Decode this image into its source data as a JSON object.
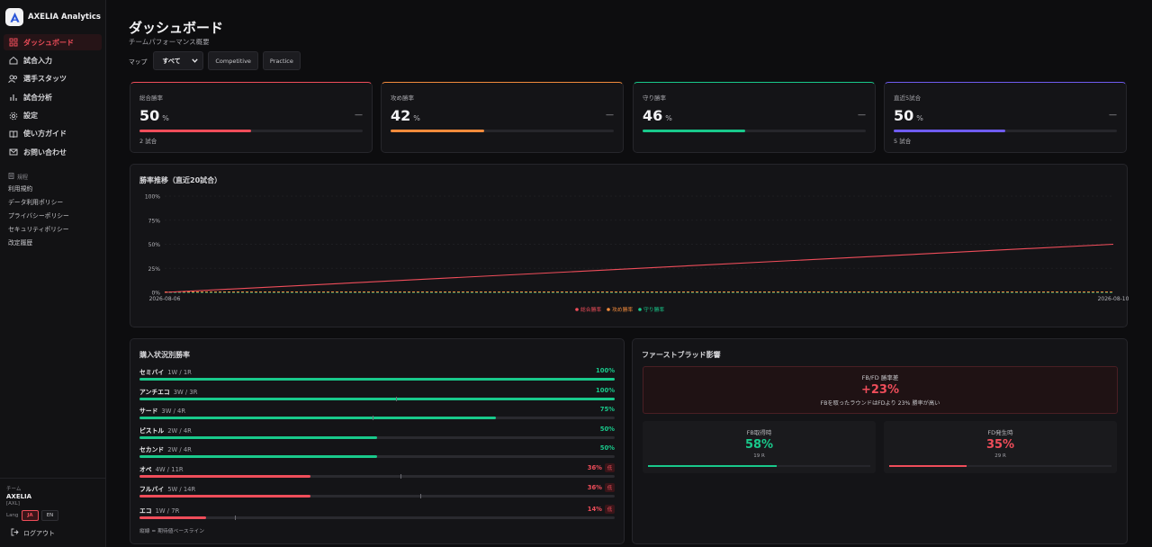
{
  "brand": {
    "name": "AXELIA Analytics"
  },
  "nav": [
    {
      "label": "ダッシュボード",
      "icon": "grid-icon",
      "active": true
    },
    {
      "label": "試合入力",
      "icon": "home-icon"
    },
    {
      "label": "選手スタッツ",
      "icon": "users-icon"
    },
    {
      "label": "試合分析",
      "icon": "bar-chart-icon"
    },
    {
      "label": "設定",
      "icon": "gear-icon"
    },
    {
      "label": "使い方ガイド",
      "icon": "book-icon"
    },
    {
      "label": "お問い合わせ",
      "icon": "mail-icon"
    }
  ],
  "legal": {
    "heading": "規程",
    "items": [
      "利用規約",
      "データ利用ポリシー",
      "プライバシーポリシー",
      "セキュリティポリシー",
      "改定履歴"
    ]
  },
  "team": {
    "caption": "チーム",
    "name": "AXELIA",
    "tag": "[AXL]"
  },
  "lang": {
    "label": "Lang",
    "options": [
      "JA",
      "EN"
    ],
    "selected": "JA"
  },
  "logout_label": "ログアウト",
  "page": {
    "title": "ダッシュボード",
    "subtitle": "チームパフォーマンス概要"
  },
  "filters": {
    "map_label": "マップ",
    "map_value": "すべて",
    "buttons": [
      "Competitive",
      "Practice"
    ]
  },
  "kpis": [
    {
      "label": "総合勝率",
      "value": "50",
      "unit": "%",
      "trend": "—",
      "sub": "2 試合",
      "fill": 0.5,
      "color": "#ef4d5a"
    },
    {
      "label": "攻め勝率",
      "value": "42",
      "unit": "%",
      "trend": "—",
      "sub": "",
      "fill": 0.42,
      "color": "#f28b3c"
    },
    {
      "label": "守り勝率",
      "value": "46",
      "unit": "%",
      "trend": "—",
      "sub": "",
      "fill": 0.46,
      "color": "#19c98b"
    },
    {
      "label": "直近5試合",
      "value": "50",
      "unit": "%",
      "trend": "—",
      "sub": "5 試合",
      "fill": 0.5,
      "color": "#6f5cf0"
    }
  ],
  "chart_data": {
    "type": "line",
    "title": "勝率推移（直近20試合）",
    "x": [
      "2026-08-06",
      "2026-08-10"
    ],
    "y_ticks": [
      "0%",
      "25%",
      "50%",
      "75%",
      "100%"
    ],
    "ylim": [
      0,
      100
    ],
    "series": [
      {
        "name": "総合勝率",
        "color": "#ef4d5a",
        "values": [
          0,
          50
        ],
        "style": "solid"
      },
      {
        "name": "攻め勝率",
        "color": "#f28b3c",
        "values": [
          0,
          0
        ],
        "style": "dashed"
      },
      {
        "name": "守り勝率",
        "color": "#19c98b",
        "values": [
          0,
          0
        ],
        "style": "dashed"
      }
    ],
    "legend_position": "bottom-center",
    "grid": true
  },
  "buy_section": {
    "title": "購入状況別勝率",
    "rows": [
      {
        "name": "セミバイ",
        "record": "1W / 1R",
        "pct": "100%",
        "value": 1.0,
        "color": "#19c98b",
        "low": false
      },
      {
        "name": "アンチエコ",
        "record": "3W / 3R",
        "pct": "100%",
        "value": 1.0,
        "color": "#19c98b",
        "low": false,
        "baseline": 0.54
      },
      {
        "name": "サード",
        "record": "3W / 4R",
        "pct": "75%",
        "value": 0.75,
        "color": "#19c98b",
        "low": false,
        "baseline": 0.49
      },
      {
        "name": "ピストル",
        "record": "2W / 4R",
        "pct": "50%",
        "value": 0.5,
        "color": "#19c98b",
        "low": false
      },
      {
        "name": "セカンド",
        "record": "2W / 4R",
        "pct": "50%",
        "value": 0.5,
        "color": "#19c98b",
        "low": false
      },
      {
        "name": "オペ",
        "record": "4W / 11R",
        "pct": "36%",
        "value": 0.36,
        "color": "#ef4d5a",
        "low": true,
        "low_label": "低",
        "baseline": 0.55
      },
      {
        "name": "フルバイ",
        "record": "5W / 14R",
        "pct": "36%",
        "value": 0.36,
        "color": "#ef4d5a",
        "low": true,
        "low_label": "低",
        "baseline": 0.59
      },
      {
        "name": "エコ",
        "record": "1W / 7R",
        "pct": "14%",
        "value": 0.14,
        "color": "#ef4d5a",
        "low": true,
        "low_label": "低",
        "baseline": 0.2
      }
    ],
    "footnote": "縦線 = 期待値ベースライン"
  },
  "fb_section": {
    "title": "ファーストブラッド影響",
    "diff_label": "FB/FD 勝率差",
    "diff_value": "+23%",
    "diff_sub": "FBを取ったラウンドはFDより 23% 勝率が高い",
    "boxes": [
      {
        "label": "FB取得時",
        "value": "58%",
        "sub": "19 R",
        "fill": 0.58,
        "color": "#19c98b"
      },
      {
        "label": "FD発生時",
        "value": "35%",
        "sub": "29 R",
        "fill": 0.35,
        "color": "#ef4d5a"
      }
    ]
  }
}
